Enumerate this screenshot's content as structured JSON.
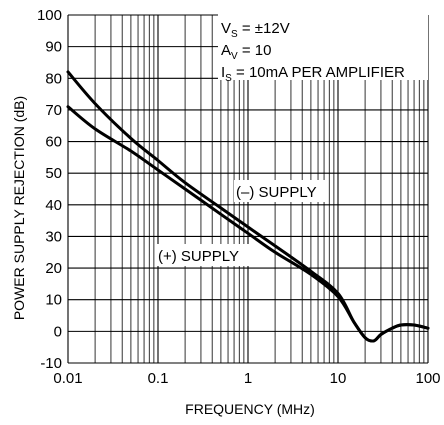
{
  "chart_data": {
    "type": "line",
    "xlabel": "FREQUENCY (MHz)",
    "ylabel": "POWER SUPPLY REJECTION (dB)",
    "x_scale": "log",
    "xlim": [
      0.01,
      100
    ],
    "ylim": [
      -10,
      100
    ],
    "x_ticks": [
      "0.01",
      "0.1",
      "1",
      "10",
      "100"
    ],
    "y_ticks": [
      "-10",
      "0",
      "10",
      "20",
      "30",
      "40",
      "50",
      "60",
      "70",
      "80",
      "90",
      "100"
    ],
    "grid": true,
    "conditions": {
      "vs": {
        "main": "V",
        "sub": "S",
        "rest": " = ±12V"
      },
      "av": {
        "main": "A",
        "sub": "V",
        "rest": " = 10"
      },
      "is": {
        "main": "I",
        "sub": "S",
        "rest": " = 10mA PER AMPLIFIER"
      }
    },
    "series": [
      {
        "name": "(–) SUPPLY",
        "x": [
          0.01,
          0.02,
          0.05,
          0.1,
          0.2,
          0.5,
          1,
          2,
          5,
          10,
          15,
          20,
          25,
          30,
          40,
          50,
          70,
          100
        ],
        "y": [
          82,
          72,
          61,
          54,
          47,
          39,
          33,
          27,
          19,
          12,
          3,
          -2,
          -3,
          -1,
          1,
          2,
          2,
          1
        ]
      },
      {
        "name": "(+) SUPPLY",
        "x": [
          0.01,
          0.02,
          0.05,
          0.1,
          0.2,
          0.5,
          1,
          2,
          5,
          10,
          15,
          20,
          25,
          30,
          40,
          50,
          70,
          100
        ],
        "y": [
          71,
          64,
          57,
          51,
          45,
          37,
          31,
          25,
          18,
          11,
          3,
          -2,
          -3,
          -1,
          1,
          2,
          2,
          1
        ]
      }
    ]
  }
}
